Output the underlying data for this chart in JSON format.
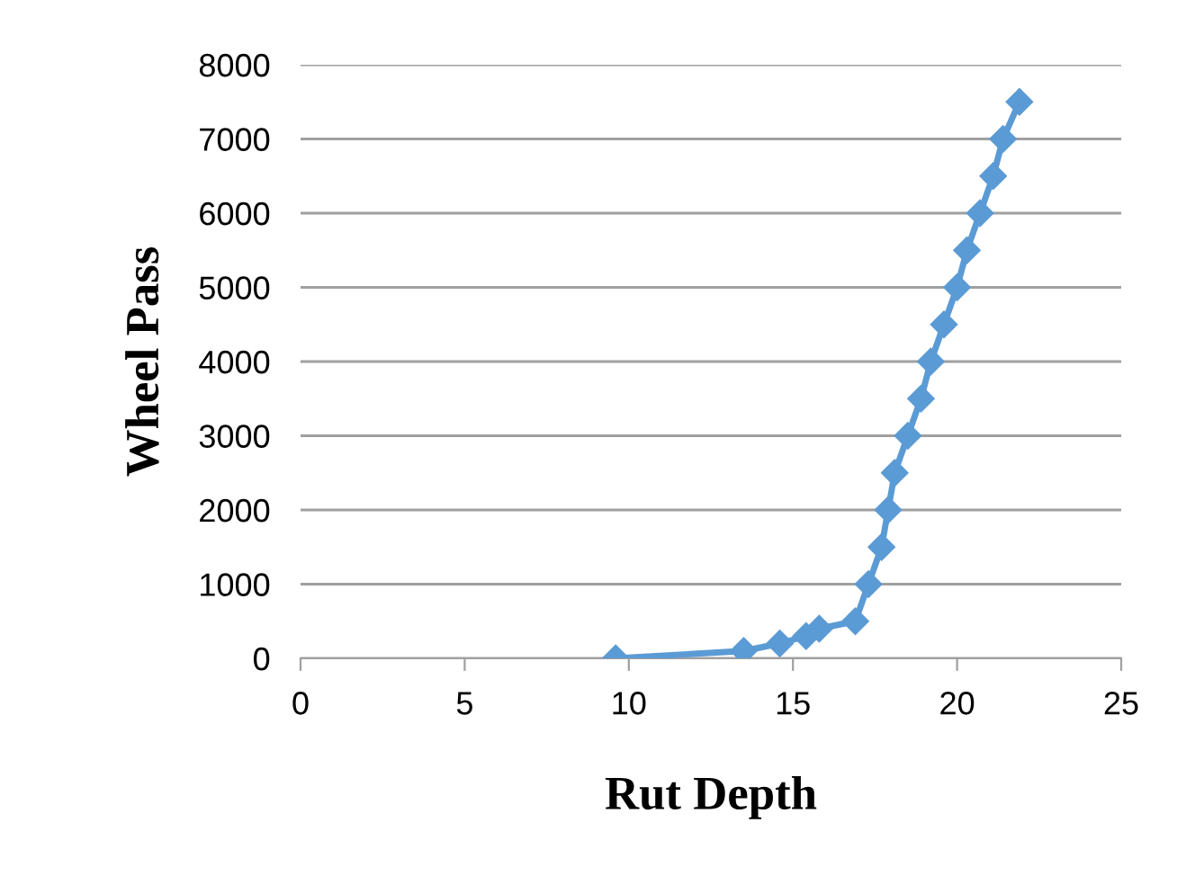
{
  "chart_data": {
    "type": "line",
    "xlabel": "Rut Depth",
    "ylabel": "Wheel Pass",
    "x": [
      9.6,
      13.5,
      14.6,
      15.4,
      15.8,
      16.9,
      17.3,
      17.7,
      17.9,
      18.1,
      18.5,
      18.9,
      19.2,
      19.6,
      20.0,
      20.3,
      20.7,
      21.1,
      21.4,
      21.9
    ],
    "series": [
      {
        "color": "#5b9bd5",
        "values": [
          0,
          100,
          200,
          300,
          400,
          500,
          1000,
          1500,
          2000,
          2500,
          3000,
          3500,
          4000,
          4500,
          5000,
          5500,
          6000,
          6500,
          7000,
          7500
        ]
      }
    ],
    "xlim": [
      0,
      25
    ],
    "xticks": [
      0,
      5,
      10,
      15,
      20,
      25
    ],
    "ylim": [
      0,
      8000
    ],
    "yticks": [
      0,
      1000,
      2000,
      3000,
      4000,
      5000,
      6000,
      7000,
      8000
    ],
    "grid": "y",
    "marker": "diamond",
    "line_style": "solid",
    "legend": false
  }
}
